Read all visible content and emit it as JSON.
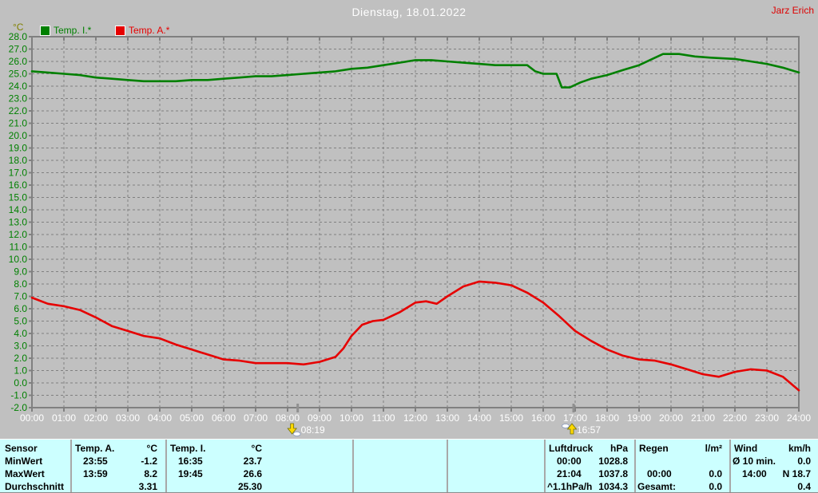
{
  "header": {
    "title": "Dienstag, 18.01.2022",
    "owner": "Jarz Erich"
  },
  "legend": {
    "axis_unit": "°C",
    "items": [
      {
        "label": "Temp. I.*",
        "color": "#008000"
      },
      {
        "label": "Temp. A.*",
        "color": "#e60000"
      }
    ]
  },
  "chart_data": {
    "type": "line",
    "title": "Dienstag, 18.01.2022",
    "xlabel": "",
    "ylabel": "°C",
    "ylim": [
      -2,
      28
    ],
    "xlim_hours": [
      0,
      24
    ],
    "grid": true,
    "legend_position": "top-left",
    "background": "#c0c0c0",
    "grid_color": "#808080",
    "y_tick_color": "#008000",
    "x_tick_color": "#ffffff",
    "y_ticks": [
      "28.0",
      "27.0",
      "26.0",
      "25.0",
      "24.0",
      "23.0",
      "22.0",
      "21.0",
      "20.0",
      "19.0",
      "18.0",
      "17.0",
      "16.0",
      "15.0",
      "14.0",
      "13.0",
      "12.0",
      "11.0",
      "10.0",
      "9.0",
      "8.0",
      "7.0",
      "6.0",
      "5.0",
      "4.0",
      "3.0",
      "2.0",
      "1.0",
      "0.0",
      "-1.0",
      "-2.0"
    ],
    "x_ticks": [
      "00:00",
      "01:00",
      "02:00",
      "03:00",
      "04:00",
      "05:00",
      "06:00",
      "07:00",
      "08:00",
      "09:00",
      "10:00",
      "11:00",
      "12:00",
      "13:00",
      "14:00",
      "15:00",
      "16:00",
      "17:00",
      "18:00",
      "19:00",
      "20:00",
      "21:00",
      "22:00",
      "23:00",
      "24:00"
    ],
    "series": [
      {
        "name": "Temp. I.*",
        "color": "#008000",
        "points": [
          [
            "00:00",
            25.2
          ],
          [
            "00:30",
            25.1
          ],
          [
            "01:00",
            25.0
          ],
          [
            "01:30",
            24.9
          ],
          [
            "02:00",
            24.7
          ],
          [
            "02:30",
            24.6
          ],
          [
            "03:00",
            24.5
          ],
          [
            "03:30",
            24.4
          ],
          [
            "04:00",
            24.4
          ],
          [
            "04:30",
            24.4
          ],
          [
            "05:00",
            24.5
          ],
          [
            "05:30",
            24.5
          ],
          [
            "06:00",
            24.6
          ],
          [
            "06:30",
            24.7
          ],
          [
            "07:00",
            24.8
          ],
          [
            "07:30",
            24.8
          ],
          [
            "08:00",
            24.9
          ],
          [
            "08:30",
            25.0
          ],
          [
            "09:00",
            25.1
          ],
          [
            "09:30",
            25.2
          ],
          [
            "10:00",
            25.4
          ],
          [
            "10:30",
            25.5
          ],
          [
            "11:00",
            25.7
          ],
          [
            "11:30",
            25.9
          ],
          [
            "12:00",
            26.1
          ],
          [
            "12:30",
            26.1
          ],
          [
            "13:00",
            26.0
          ],
          [
            "13:30",
            25.9
          ],
          [
            "14:00",
            25.8
          ],
          [
            "14:30",
            25.7
          ],
          [
            "15:00",
            25.7
          ],
          [
            "15:30",
            25.7
          ],
          [
            "15:45",
            25.2
          ],
          [
            "16:00",
            25.0
          ],
          [
            "16:25",
            25.0
          ],
          [
            "16:35",
            23.9
          ],
          [
            "16:50",
            23.9
          ],
          [
            "17:10",
            24.3
          ],
          [
            "17:30",
            24.6
          ],
          [
            "18:00",
            24.9
          ],
          [
            "18:30",
            25.3
          ],
          [
            "19:00",
            25.7
          ],
          [
            "19:30",
            26.3
          ],
          [
            "19:45",
            26.6
          ],
          [
            "20:15",
            26.6
          ],
          [
            "20:45",
            26.4
          ],
          [
            "21:15",
            26.3
          ],
          [
            "22:00",
            26.2
          ],
          [
            "22:30",
            26.0
          ],
          [
            "23:00",
            25.8
          ],
          [
            "23:30",
            25.5
          ],
          [
            "24:00",
            25.1
          ]
        ]
      },
      {
        "name": "Temp. A.*",
        "color": "#e60000",
        "points": [
          [
            "00:00",
            6.9
          ],
          [
            "00:30",
            6.4
          ],
          [
            "01:00",
            6.2
          ],
          [
            "01:30",
            5.9
          ],
          [
            "02:00",
            5.3
          ],
          [
            "02:30",
            4.6
          ],
          [
            "03:00",
            4.2
          ],
          [
            "03:30",
            3.8
          ],
          [
            "04:00",
            3.6
          ],
          [
            "04:30",
            3.1
          ],
          [
            "05:00",
            2.7
          ],
          [
            "05:30",
            2.3
          ],
          [
            "06:00",
            1.9
          ],
          [
            "06:30",
            1.8
          ],
          [
            "07:00",
            1.6
          ],
          [
            "07:30",
            1.6
          ],
          [
            "08:00",
            1.6
          ],
          [
            "08:30",
            1.5
          ],
          [
            "09:00",
            1.7
          ],
          [
            "09:30",
            2.1
          ],
          [
            "09:45",
            2.8
          ],
          [
            "10:00",
            3.8
          ],
          [
            "10:20",
            4.7
          ],
          [
            "10:40",
            5.0
          ],
          [
            "11:00",
            5.1
          ],
          [
            "11:30",
            5.7
          ],
          [
            "12:00",
            6.5
          ],
          [
            "12:20",
            6.6
          ],
          [
            "12:40",
            6.4
          ],
          [
            "13:00",
            7.0
          ],
          [
            "13:30",
            7.8
          ],
          [
            "14:00",
            8.2
          ],
          [
            "14:30",
            8.1
          ],
          [
            "15:00",
            7.9
          ],
          [
            "15:30",
            7.3
          ],
          [
            "16:00",
            6.5
          ],
          [
            "16:30",
            5.4
          ],
          [
            "17:00",
            4.2
          ],
          [
            "17:30",
            3.4
          ],
          [
            "18:00",
            2.7
          ],
          [
            "18:30",
            2.2
          ],
          [
            "19:00",
            1.9
          ],
          [
            "19:30",
            1.8
          ],
          [
            "20:00",
            1.5
          ],
          [
            "20:30",
            1.1
          ],
          [
            "21:00",
            0.7
          ],
          [
            "21:30",
            0.5
          ],
          [
            "22:00",
            0.9
          ],
          [
            "22:30",
            1.1
          ],
          [
            "23:00",
            1.0
          ],
          [
            "23:30",
            0.5
          ],
          [
            "24:00",
            -0.6
          ]
        ]
      }
    ],
    "sun_markers": [
      {
        "time": "08:19",
        "label": "08:19",
        "direction": "down"
      },
      {
        "time": "16:57",
        "label": "16:57",
        "direction": "up"
      }
    ]
  },
  "stats_table": {
    "row_labels": [
      "Sensor",
      "MinWert",
      "MaxWert",
      "Durchschnitt"
    ],
    "temp_a": {
      "name": "Temp. A.",
      "unit": "°C",
      "min_time": "23:55",
      "min": "-1.2",
      "max_time": "13:59",
      "max": "8.2",
      "avg": "3.31"
    },
    "temp_i": {
      "name": "Temp. I.",
      "unit": "°C",
      "min_time": "16:35",
      "min": "23.7",
      "max_time": "19:45",
      "max": "26.6",
      "avg": "25.30"
    },
    "luftdruck": {
      "name": "Luftdruck",
      "unit": "hPa",
      "r2_time": "00:00",
      "r2_val": "1028.8",
      "r3_time": "21:04",
      "r3_val": "1037.8",
      "r4_label": "^1.1hPa/h",
      "r4_val": "1034.3"
    },
    "regen": {
      "name": "Regen",
      "unit": "l/m²",
      "r3_time": "00:00",
      "r3_val": "0.0",
      "r4_label": "Gesamt:",
      "r4_val": "0.0"
    },
    "wind": {
      "name": "Wind",
      "unit": "km/h",
      "r2_label": "Ø 10 min.",
      "r2_val": "0.0",
      "r3_time": "14:00",
      "r3_val": "N 18.7",
      "r4_val": "0.4"
    }
  }
}
